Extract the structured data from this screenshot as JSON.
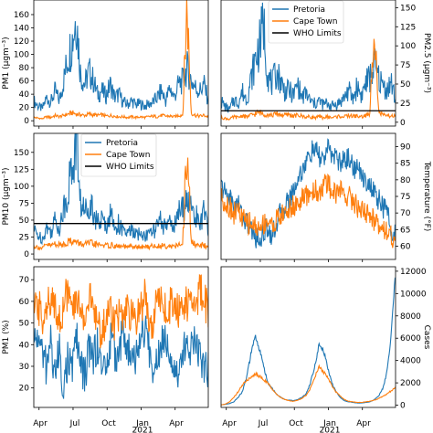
{
  "colors": {
    "pretoria": "#1f77b4",
    "cape_town": "#ff7f0e",
    "who": "#000000"
  },
  "legend": {
    "pretoria": "Pretoria",
    "cape_town": "Cape Town",
    "who": "WHO Limits"
  },
  "xaxis": {
    "ticks": [
      "Apr",
      "Jul",
      "Oct",
      "Jan",
      "Apr"
    ],
    "year_label": "2021"
  },
  "chart_data": [
    {
      "id": "p1",
      "type": "line",
      "ylabel": "PM1 (μgm⁻³)",
      "ylabel_side": "left",
      "ylim": [
        -8,
        182
      ],
      "yticks": [
        "0",
        "20",
        "40",
        "60",
        "80",
        "100",
        "120",
        "140",
        "160"
      ],
      "who_limit": null,
      "legend": false,
      "series": [
        {
          "name": "Pretoria",
          "color": "#1f77b4",
          "values": [
            30,
            22,
            18,
            35,
            28,
            45,
            30,
            60,
            95,
            120,
            160,
            70,
            55,
            75,
            60,
            40,
            45,
            38,
            55,
            35,
            40,
            28,
            25,
            30,
            24,
            26,
            22,
            25,
            28,
            35,
            45,
            30,
            50,
            35,
            55,
            60,
            80,
            60,
            50,
            45,
            55,
            30
          ]
        },
        {
          "name": "Cape Town",
          "color": "#ff7f0e",
          "values": [
            5,
            4,
            3,
            6,
            5,
            8,
            6,
            8,
            10,
            12,
            10,
            9,
            8,
            10,
            9,
            8,
            9,
            7,
            8,
            7,
            6,
            6,
            5,
            6,
            5,
            6,
            5,
            6,
            7,
            6,
            8,
            7,
            7,
            6,
            8,
            9,
            175,
            12,
            8,
            7,
            8,
            6
          ]
        }
      ]
    },
    {
      "id": "p2",
      "type": "line",
      "ylabel": "PM2.5 (μgm⁻³)",
      "ylabel_side": "right",
      "ylim": [
        -5,
        160
      ],
      "yticks": [
        "0",
        "25",
        "50",
        "75",
        "100",
        "125",
        "150"
      ],
      "who_limit": 15,
      "legend": true,
      "series": [
        {
          "name": "Pretoria",
          "color": "#1f77b4",
          "values": [
            28,
            20,
            16,
            30,
            25,
            40,
            30,
            55,
            80,
            100,
            130,
            60,
            50,
            65,
            55,
            40,
            42,
            35,
            50,
            32,
            38,
            27,
            24,
            28,
            23,
            25,
            21,
            24,
            26,
            33,
            42,
            30,
            48,
            34,
            52,
            58,
            75,
            58,
            48,
            43,
            52,
            28
          ]
        },
        {
          "name": "Cape Town",
          "color": "#ff7f0e",
          "values": [
            6,
            5,
            4,
            7,
            6,
            9,
            7,
            9,
            11,
            13,
            11,
            10,
            9,
            11,
            10,
            9,
            10,
            8,
            9,
            8,
            7,
            7,
            6,
            7,
            6,
            7,
            6,
            7,
            8,
            7,
            9,
            8,
            8,
            7,
            9,
            10,
            150,
            14,
            9,
            8,
            9,
            7
          ]
        }
      ]
    },
    {
      "id": "p3",
      "type": "line",
      "ylabel": "PM10 (μgm⁻³)",
      "ylabel_side": "left",
      "ylim": [
        -8,
        178
      ],
      "yticks": [
        "0",
        "25",
        "50",
        "75",
        "100",
        "125",
        "150"
      ],
      "who_limit": 45,
      "legend": true,
      "series": [
        {
          "name": "Pretoria",
          "color": "#1f77b4",
          "values": [
            35,
            28,
            22,
            40,
            32,
            50,
            38,
            65,
            95,
            125,
            170,
            75,
            60,
            80,
            65,
            45,
            50,
            42,
            60,
            40,
            45,
            32,
            30,
            35,
            28,
            30,
            26,
            30,
            32,
            40,
            50,
            35,
            55,
            40,
            60,
            65,
            85,
            65,
            55,
            50,
            60,
            35
          ]
        },
        {
          "name": "Cape Town",
          "color": "#ff7f0e",
          "values": [
            12,
            10,
            8,
            14,
            12,
            16,
            13,
            15,
            18,
            20,
            17,
            15,
            14,
            16,
            15,
            13,
            14,
            12,
            13,
            12,
            11,
            11,
            10,
            11,
            10,
            11,
            10,
            11,
            12,
            11,
            13,
            12,
            12,
            11,
            13,
            14,
            165,
            18,
            13,
            12,
            13,
            11
          ]
        }
      ]
    },
    {
      "id": "p4",
      "type": "line",
      "ylabel": "Temperature (°F)",
      "ylabel_side": "right",
      "ylim": [
        56,
        94
      ],
      "yticks": [
        "60",
        "65",
        "70",
        "75",
        "80",
        "85",
        "90"
      ],
      "who_limit": null,
      "legend": false,
      "series": [
        {
          "name": "Pretoria",
          "color": "#1f77b4",
          "values": [
            78,
            76,
            75,
            72,
            73,
            69,
            67,
            65,
            63,
            62,
            64,
            66,
            63,
            67,
            70,
            72,
            74,
            77,
            80,
            83,
            85,
            88,
            89,
            87,
            86,
            89,
            88,
            87,
            85,
            86,
            87,
            84,
            83,
            82,
            80,
            78,
            76,
            74,
            72,
            70,
            66,
            63
          ]
        },
        {
          "name": "Cape Town",
          "color": "#ff7f0e",
          "values": [
            75,
            73,
            72,
            70,
            71,
            68,
            67,
            67,
            66,
            65,
            67,
            68,
            66,
            68,
            69,
            70,
            71,
            72,
            73,
            74,
            75,
            76,
            77,
            76,
            78,
            79,
            77,
            76,
            77,
            76,
            75,
            74,
            72,
            71,
            70,
            69,
            68,
            67,
            66,
            65,
            63,
            61
          ]
        }
      ]
    },
    {
      "id": "p5",
      "type": "line",
      "ylabel": "PM1 (%)",
      "ylabel_side": "left",
      "ylim": [
        11,
        76
      ],
      "yticks": [
        "20",
        "30",
        "40",
        "50",
        "60",
        "70"
      ],
      "who_limit": null,
      "legend": false,
      "series": [
        {
          "name": "Pretoria",
          "color": "#1f77b4",
          "values": [
            40,
            45,
            35,
            30,
            42,
            25,
            38,
            20,
            33,
            28,
            45,
            30,
            25,
            38,
            35,
            40,
            30,
            28,
            42,
            35,
            38,
            45,
            40,
            30,
            35,
            42,
            48,
            38,
            30,
            34,
            42,
            45,
            38,
            30,
            28,
            35,
            42,
            38,
            45,
            35,
            30,
            28
          ]
        },
        {
          "name": "Cape Town",
          "color": "#ff7f0e",
          "values": [
            55,
            58,
            52,
            60,
            56,
            62,
            50,
            58,
            65,
            54,
            60,
            58,
            52,
            62,
            56,
            50,
            45,
            52,
            58,
            50,
            55,
            48,
            56,
            52,
            50,
            58,
            62,
            55,
            50,
            60,
            65,
            55,
            58,
            62,
            56,
            60,
            58,
            62,
            55,
            68,
            60,
            56
          ]
        }
      ]
    },
    {
      "id": "p6",
      "type": "line",
      "ylabel": "Cases",
      "ylabel_side": "right",
      "ylim": [
        -200,
        12400
      ],
      "yticks": [
        "0",
        "2000",
        "4000",
        "6000",
        "8000",
        "10000",
        "12000"
      ],
      "who_limit": null,
      "legend": false,
      "series": [
        {
          "name": "Pretoria",
          "color": "#1f77b4",
          "values": [
            30,
            80,
            150,
            300,
            700,
            1200,
            2500,
            4500,
            6200,
            5000,
            3500,
            2000,
            1500,
            1000,
            700,
            500,
            450,
            400,
            500,
            700,
            1000,
            2000,
            3500,
            5400,
            5000,
            3500,
            2000,
            1200,
            700,
            400,
            300,
            250,
            200,
            200,
            250,
            300,
            500,
            800,
            1500,
            3000,
            6500,
            11800
          ]
        },
        {
          "name": "Cape Town",
          "color": "#ff7f0e",
          "values": [
            20,
            100,
            300,
            700,
            1200,
            1800,
            2200,
            2500,
            2800,
            2600,
            2300,
            2000,
            1400,
            1000,
            700,
            500,
            400,
            350,
            450,
            600,
            900,
            1500,
            2500,
            3400,
            3000,
            2500,
            1800,
            1200,
            800,
            500,
            350,
            300,
            250,
            250,
            300,
            350,
            450,
            600,
            800,
            1000,
            1300,
            1600
          ]
        }
      ]
    }
  ]
}
